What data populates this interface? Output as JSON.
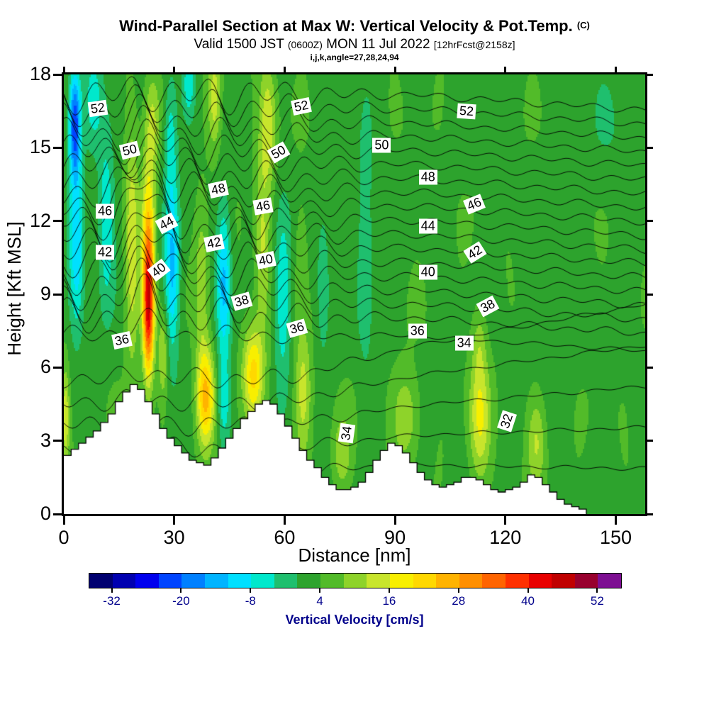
{
  "title": {
    "main": "Wind-Parallel Section at Max W: Vertical Velocity & Pot.Temp.",
    "unit": "(C)",
    "valid_prefix": "Valid 1500 JST",
    "valid_zulu": "(0600Z)",
    "valid_date": "MON 11 Jul 2022",
    "fcst": "[12hrFcst@2158z]",
    "grid_info": "i,j,k,angle=27,28,24,94"
  },
  "axes": {
    "x": {
      "label": "Distance [nm]",
      "min": 0,
      "max": 158,
      "ticks": [
        0,
        30,
        60,
        90,
        120,
        150
      ]
    },
    "y": {
      "label": "Height [Kft MSL]",
      "min": 0,
      "max": 18,
      "ticks": [
        0,
        3,
        6,
        9,
        12,
        15,
        18
      ]
    }
  },
  "colorbar": {
    "label": "Vertical Velocity [cm/s]",
    "min": -36,
    "max": 56,
    "step": 4,
    "tick_values": [
      -32,
      -20,
      -8,
      4,
      16,
      28,
      40,
      52
    ],
    "text_color": "#00008b",
    "colors": [
      "#000070",
      "#0000b0",
      "#0000ee",
      "#0044ff",
      "#0080ff",
      "#00b4ff",
      "#00e0ff",
      "#00e8cc",
      "#1fbf6e",
      "#2da32d",
      "#52bb29",
      "#8ed32a",
      "#c8e52c",
      "#f8ef00",
      "#ffd800",
      "#ffb300",
      "#ff8f00",
      "#ff6400",
      "#ff3000",
      "#e80000",
      "#c00000",
      "#98002e",
      "#7d0e92"
    ]
  },
  "chart_data": {
    "type": "contour",
    "description": "Vertical cross-section along wind at max W: filled contours = vertical velocity (cm/s), black line contours = potential temperature (C), white stepped silhouette = terrain",
    "x_range": [
      0,
      158
    ],
    "y_range": [
      0,
      18
    ],
    "w_background": 3.0,
    "w_features": [
      {
        "x": 3,
        "z": 16,
        "sx": 1.6,
        "sz": 2.2,
        "a": -26
      },
      {
        "x": 3.5,
        "z": 11,
        "sx": 2.0,
        "sz": 3.5,
        "a": -14
      },
      {
        "x": 8,
        "z": 17,
        "sx": 2.5,
        "sz": 2.0,
        "a": -8
      },
      {
        "x": 11.5,
        "z": 12,
        "sx": 2.2,
        "sz": 3.5,
        "a": -11
      },
      {
        "x": 0.5,
        "z": 4,
        "sx": 1.0,
        "sz": 2.0,
        "a": 12
      },
      {
        "x": 18.5,
        "z": 11,
        "sx": 1.8,
        "sz": 5.0,
        "a": 12
      },
      {
        "x": 23,
        "z": 8.5,
        "sx": 1.5,
        "sz": 2.8,
        "a": 40
      },
      {
        "x": 23,
        "z": 12,
        "sx": 1.8,
        "sz": 2.8,
        "a": 15
      },
      {
        "x": 24,
        "z": 16,
        "sx": 2.0,
        "sz": 2.0,
        "a": 9
      },
      {
        "x": 27,
        "z": 6.5,
        "sx": 1.3,
        "sz": 1.8,
        "a": 10
      },
      {
        "x": 29.5,
        "z": 10,
        "sx": 2.0,
        "sz": 3.5,
        "a": -16
      },
      {
        "x": 29,
        "z": 15.5,
        "sx": 1.8,
        "sz": 2.5,
        "a": -9
      },
      {
        "x": 34,
        "z": 17.5,
        "sx": 1.8,
        "sz": 1.5,
        "a": -9
      },
      {
        "x": 38.5,
        "z": 4.8,
        "sx": 2.4,
        "sz": 2.0,
        "a": 22
      },
      {
        "x": 37.5,
        "z": 9.5,
        "sx": 1.8,
        "sz": 3.0,
        "a": 9
      },
      {
        "x": 41,
        "z": 17,
        "sx": 1.8,
        "sz": 2.0,
        "a": 11
      },
      {
        "x": 43.5,
        "z": 9.5,
        "sx": 2.0,
        "sz": 3.2,
        "a": -16
      },
      {
        "x": 43.5,
        "z": 4.5,
        "sx": 1.8,
        "sz": 1.8,
        "a": -9
      },
      {
        "x": 51.5,
        "z": 5.8,
        "sx": 2.8,
        "sz": 1.9,
        "a": 18
      },
      {
        "x": 54,
        "z": 11,
        "sx": 2.0,
        "sz": 3.5,
        "a": 10
      },
      {
        "x": 55.5,
        "z": 16,
        "sx": 2.2,
        "sz": 2.5,
        "a": 12
      },
      {
        "x": 59.5,
        "z": 9,
        "sx": 2.2,
        "sz": 3.5,
        "a": -12
      },
      {
        "x": 65,
        "z": 5,
        "sx": 2.2,
        "sz": 2.5,
        "a": 11
      },
      {
        "x": 64.5,
        "z": 10.5,
        "sx": 1.8,
        "sz": 2.5,
        "a": 5
      },
      {
        "x": 70.5,
        "z": 9.5,
        "sx": 1.8,
        "sz": 3.0,
        "a": -7
      },
      {
        "x": 75.5,
        "z": 2.5,
        "sx": 2.5,
        "sz": 1.5,
        "a": 8
      },
      {
        "x": 82,
        "z": 11,
        "sx": 2.2,
        "sz": 5.0,
        "a": -7
      },
      {
        "x": 93,
        "z": 4,
        "sx": 3.5,
        "sz": 1.8,
        "a": 9
      },
      {
        "x": 113,
        "z": 4,
        "sx": 2.8,
        "sz": 2.5,
        "a": 13
      },
      {
        "x": 113,
        "z": 7,
        "sx": 1.8,
        "sz": 1.5,
        "a": 6
      },
      {
        "x": 128.5,
        "z": 3,
        "sx": 2.5,
        "sz": 1.8,
        "a": 9
      },
      {
        "x": 150,
        "z": 16,
        "sx": 8.0,
        "sz": 3.0,
        "a": -2.5
      },
      {
        "x": 133,
        "z": 10,
        "sx": 6.0,
        "sz": 5.0,
        "a": -1.5
      }
    ],
    "texture": {
      "a1": 1.1,
      "f1x": 0.5,
      "p1x": 0.7,
      "f1z": 0.42,
      "p1z": 0.4,
      "a2": 0.9,
      "f2x": 0.19,
      "p2x": 2.3,
      "f2z": 0.8,
      "p2z": 1.2
    },
    "theta_levels_start": 31,
    "theta_levels_end": 53,
    "theta_labeled": [
      32,
      34,
      36,
      38,
      40,
      42,
      44,
      46,
      48,
      50,
      52
    ],
    "theta_profile": {
      "z36": 7.3,
      "z38": 8.6,
      "lapse_upper": 1.75,
      "z30": 0.8,
      "lapse_lower": 0.95
    },
    "wave": {
      "amp_near": 1.0,
      "amp_far": 0.2,
      "taper_start": 50,
      "taper_end": 90,
      "k1": 0.6,
      "k2": 0.3,
      "a1": 0.55,
      "a2": 0.3,
      "bump_x": 22,
      "bump_z": 11,
      "bump_amp": 1.7
    },
    "contour_labels": [
      {
        "v": 52,
        "x": 9.2,
        "z": 16.6,
        "rot": -8
      },
      {
        "v": 52,
        "x": 64.5,
        "z": 16.7,
        "rot": -12
      },
      {
        "v": 52,
        "x": 109.4,
        "z": 16.5,
        "rot": 4
      },
      {
        "v": 50,
        "x": 17.9,
        "z": 14.9,
        "rot": -14
      },
      {
        "v": 50,
        "x": 58.3,
        "z": 14.8,
        "rot": -30
      },
      {
        "v": 50,
        "x": 86.4,
        "z": 15.1,
        "rot": 0
      },
      {
        "v": 48,
        "x": 42.0,
        "z": 13.3,
        "rot": -12
      },
      {
        "v": 48,
        "x": 99.0,
        "z": 13.8,
        "rot": 0
      },
      {
        "v": 46,
        "x": 11.2,
        "z": 12.4,
        "rot": 0
      },
      {
        "v": 46,
        "x": 54.1,
        "z": 12.6,
        "rot": -10
      },
      {
        "v": 46,
        "x": 111.5,
        "z": 12.7,
        "rot": -22
      },
      {
        "v": 44,
        "x": 27.9,
        "z": 11.9,
        "rot": -28
      },
      {
        "v": 44,
        "x": 99.0,
        "z": 11.8,
        "rot": 0
      },
      {
        "v": 42,
        "x": 11.2,
        "z": 10.7,
        "rot": 0
      },
      {
        "v": 42,
        "x": 40.8,
        "z": 11.1,
        "rot": -12
      },
      {
        "v": 42,
        "x": 111.7,
        "z": 10.7,
        "rot": -32
      },
      {
        "v": 40,
        "x": 25.8,
        "z": 10.0,
        "rot": -38
      },
      {
        "v": 40,
        "x": 54.9,
        "z": 10.4,
        "rot": -12
      },
      {
        "v": 40,
        "x": 99.0,
        "z": 9.9,
        "rot": 0
      },
      {
        "v": 38,
        "x": 48.3,
        "z": 8.7,
        "rot": -16
      },
      {
        "v": 38,
        "x": 115.3,
        "z": 8.5,
        "rot": -28
      },
      {
        "v": 36,
        "x": 15.8,
        "z": 7.1,
        "rot": -12
      },
      {
        "v": 36,
        "x": 63.3,
        "z": 7.6,
        "rot": -16
      },
      {
        "v": 36,
        "x": 96.1,
        "z": 7.5,
        "rot": 0
      },
      {
        "v": 34,
        "x": 76.8,
        "z": 3.3,
        "rot": -82
      },
      {
        "v": 34,
        "x": 108.8,
        "z": 7.0,
        "rot": 0
      },
      {
        "v": 32,
        "x": 120.5,
        "z": 3.8,
        "rot": -72
      }
    ],
    "terrain": [
      [
        0,
        2.4
      ],
      [
        2,
        2.65
      ],
      [
        4,
        2.9
      ],
      [
        6,
        3.15
      ],
      [
        8,
        3.4
      ],
      [
        10,
        3.75
      ],
      [
        12,
        4.1
      ],
      [
        14,
        4.6
      ],
      [
        16,
        5.0
      ],
      [
        18,
        5.3
      ],
      [
        20,
        5.1
      ],
      [
        22,
        4.6
      ],
      [
        24,
        4.1
      ],
      [
        26,
        3.5
      ],
      [
        28,
        3.1
      ],
      [
        30,
        2.8
      ],
      [
        32,
        2.5
      ],
      [
        34,
        2.2
      ],
      [
        36,
        2.1
      ],
      [
        38,
        2.0
      ],
      [
        40,
        2.3
      ],
      [
        42,
        2.7
      ],
      [
        44,
        3.1
      ],
      [
        46,
        3.5
      ],
      [
        48,
        3.9
      ],
      [
        50,
        4.2
      ],
      [
        52,
        4.5
      ],
      [
        54,
        4.65
      ],
      [
        56,
        4.5
      ],
      [
        58,
        4.1
      ],
      [
        60,
        3.6
      ],
      [
        62,
        3.1
      ],
      [
        64,
        2.6
      ],
      [
        66,
        2.2
      ],
      [
        68,
        1.9
      ],
      [
        70,
        1.5
      ],
      [
        72,
        1.2
      ],
      [
        74,
        1.0
      ],
      [
        76,
        1.0
      ],
      [
        78,
        1.1
      ],
      [
        80,
        1.3
      ],
      [
        82,
        1.7
      ],
      [
        84,
        2.2
      ],
      [
        86,
        2.6
      ],
      [
        88,
        2.9
      ],
      [
        90,
        2.8
      ],
      [
        92,
        2.5
      ],
      [
        94,
        2.1
      ],
      [
        96,
        1.7
      ],
      [
        98,
        1.4
      ],
      [
        100,
        1.2
      ],
      [
        102,
        1.1
      ],
      [
        104,
        1.2
      ],
      [
        106,
        1.3
      ],
      [
        108,
        1.5
      ],
      [
        110,
        1.5
      ],
      [
        112,
        1.4
      ],
      [
        114,
        1.2
      ],
      [
        116,
        1.0
      ],
      [
        118,
        0.9
      ],
      [
        120,
        1.0
      ],
      [
        122,
        1.1
      ],
      [
        124,
        1.3
      ],
      [
        126,
        1.6
      ],
      [
        128,
        1.5
      ],
      [
        130,
        1.2
      ],
      [
        132,
        0.9
      ],
      [
        134,
        0.6
      ],
      [
        136,
        0.4
      ],
      [
        138,
        0.3
      ],
      [
        140,
        0.2
      ],
      [
        142,
        0
      ]
    ]
  }
}
